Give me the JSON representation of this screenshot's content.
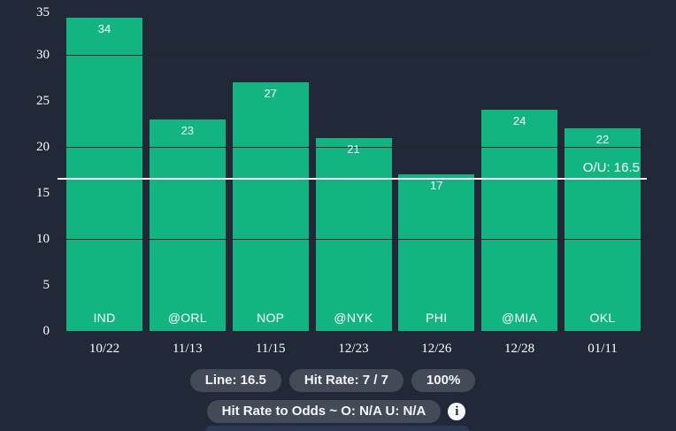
{
  "colors": {
    "background": "#212938",
    "bar_green": "#12b582",
    "gridline": "#1d2531",
    "reference_line": "#ffffff",
    "pill_background": "#444b58",
    "pill_text": "#f4f6f8",
    "bottom_partial_element": "#2c3854"
  },
  "chart_data": {
    "type": "bar",
    "categories": [
      "IND",
      "@ORL",
      "NOP",
      "@NYK",
      "PHI",
      "@MIA",
      "OKL"
    ],
    "dates": [
      "10/22",
      "11/13",
      "11/15",
      "12/23",
      "12/26",
      "12/28",
      "01/11"
    ],
    "values": [
      34,
      23,
      27,
      21,
      17,
      24,
      22
    ],
    "title": "",
    "xlabel": "",
    "ylabel": "",
    "ylim": [
      0,
      35
    ],
    "yticks": [
      0,
      5,
      10,
      15,
      20,
      25,
      30,
      35
    ],
    "gridlines_at": [
      10,
      20,
      30
    ],
    "grid": "horizontal-partial",
    "legend_position": "none",
    "bar_value_labels_inside_top": true,
    "category_labels_inside_bottom": true,
    "reference_line": {
      "value": 16.5,
      "label": "O/U: 16.5"
    }
  },
  "footer": {
    "badges": [
      {
        "label": "Line: 16.5"
      },
      {
        "label": "Hit Rate: 7 / 7"
      },
      {
        "label": "100%"
      }
    ],
    "odds_badge": {
      "label": "Hit Rate to Odds ~ O: N/A U: N/A"
    },
    "info_icon_glyph": "i"
  }
}
